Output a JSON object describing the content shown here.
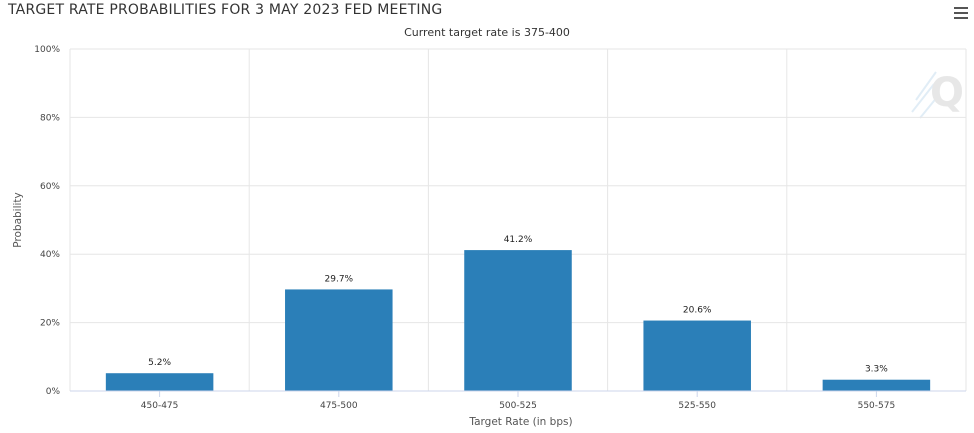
{
  "header": {
    "title": "TARGET RATE PROBABILITIES FOR 3 MAY 2023 FED MEETING",
    "subtitle": "Current target rate is 375-400",
    "menu_icon": "hamburger-menu-icon",
    "watermark_icon": "q-logo-icon"
  },
  "chart_data": {
    "type": "bar",
    "title": "TARGET RATE PROBABILITIES FOR 3 MAY 2023 FED MEETING",
    "subtitle": "Current target rate is 375-400",
    "categories": [
      "450-475",
      "475-500",
      "500-525",
      "525-550",
      "550-575"
    ],
    "values": [
      5.2,
      29.7,
      41.2,
      20.6,
      3.3
    ],
    "data_labels": [
      "5.2%",
      "29.7%",
      "41.2%",
      "20.6%",
      "3.3%"
    ],
    "xlabel": "Target Rate (in bps)",
    "ylabel": "Probability",
    "ylim": [
      0,
      100
    ],
    "yticks": [
      "0%",
      "20%",
      "40%",
      "60%",
      "80%",
      "100%"
    ],
    "ytick_values": [
      0,
      20,
      40,
      60,
      80,
      100
    ],
    "grid": true,
    "colors": {
      "bar": "#2b7fb8",
      "grid": "#e6e6e6",
      "axis": "#ccd6eb"
    }
  }
}
